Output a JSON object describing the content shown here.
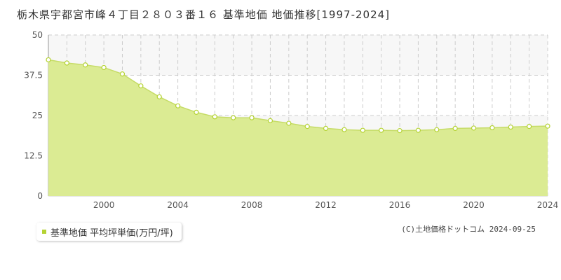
{
  "title": "栃木県宇都宮市峰４丁目２８０３番１６ 基準地価 地価推移[1997-2024]",
  "copyright": "(C)土地価格ドットコム 2024-09-25",
  "colors": {
    "fill": "#dbeb93",
    "line": "#c6dc67",
    "point_stroke": "#b5d334",
    "grid": "#cccccc",
    "band": "#f7f7f7"
  },
  "chart_data": {
    "type": "area",
    "title": "",
    "xlabel": "",
    "ylabel": "",
    "xlim": [
      1997,
      2024
    ],
    "ylim": [
      0,
      50
    ],
    "yticks": [
      0,
      12.5,
      25,
      37.5,
      50
    ],
    "ytick_labels": [
      "0",
      "12.5",
      "25",
      "37.5",
      "50"
    ],
    "xticks": [
      2000,
      2004,
      2008,
      2012,
      2016,
      2020,
      2024
    ],
    "xtick_labels": [
      "2000",
      "2004",
      "2008",
      "2012",
      "2016",
      "2020",
      "2024"
    ],
    "grid": true,
    "legend_position": "bottom-left",
    "series": [
      {
        "name": "基準地価 平均坪単価(万円/坪)",
        "x": [
          1997,
          1998,
          1999,
          2000,
          2001,
          2002,
          2003,
          2004,
          2005,
          2006,
          2007,
          2008,
          2009,
          2010,
          2011,
          2012,
          2013,
          2014,
          2015,
          2016,
          2017,
          2018,
          2019,
          2020,
          2021,
          2022,
          2023,
          2024
        ],
        "y": [
          42.3,
          41.3,
          40.7,
          39.9,
          37.9,
          34.2,
          30.8,
          28.0,
          26.0,
          24.6,
          24.3,
          24.3,
          23.4,
          22.6,
          21.6,
          21.0,
          20.6,
          20.4,
          20.4,
          20.3,
          20.4,
          20.6,
          21.0,
          21.1,
          21.2,
          21.4,
          21.6,
          21.7
        ]
      }
    ]
  }
}
